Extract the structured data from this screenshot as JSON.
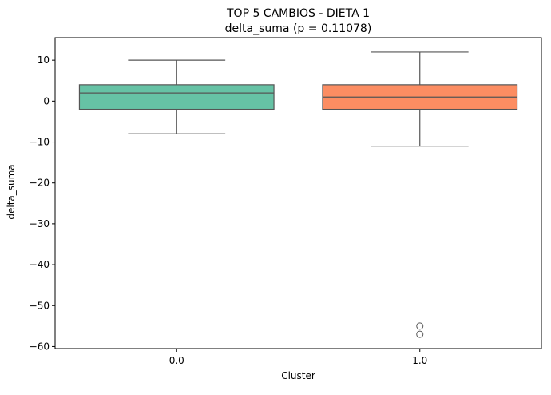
{
  "chart_data": {
    "type": "box",
    "title_line1": "TOP 5 CAMBIOS - DIETA 1",
    "title_line2": "delta_suma (p = 0.11078)",
    "xlabel": "Cluster",
    "ylabel": "delta_suma",
    "ylim": [
      -60.5,
      15.5
    ],
    "yticks": [
      10,
      0,
      -10,
      -20,
      -30,
      -40,
      -50,
      -60
    ],
    "ytick_labels": [
      "10",
      "0",
      "−10",
      "−20",
      "−30",
      "−40",
      "−50",
      "−60"
    ],
    "categories": [
      "0.0",
      "1.0"
    ],
    "boxes": [
      {
        "category": "0.0",
        "whisker_low": -8,
        "q1": -2,
        "median": 2,
        "q3": 4,
        "whisker_high": 10,
        "outliers": [],
        "color": "#66c2a5"
      },
      {
        "category": "1.0",
        "whisker_low": -11,
        "q1": -2,
        "median": 1,
        "q3": 4,
        "whisker_high": 12,
        "outliers": [
          -55,
          -57
        ],
        "color": "#fc8d62"
      }
    ],
    "grid": false,
    "legend": "none"
  }
}
